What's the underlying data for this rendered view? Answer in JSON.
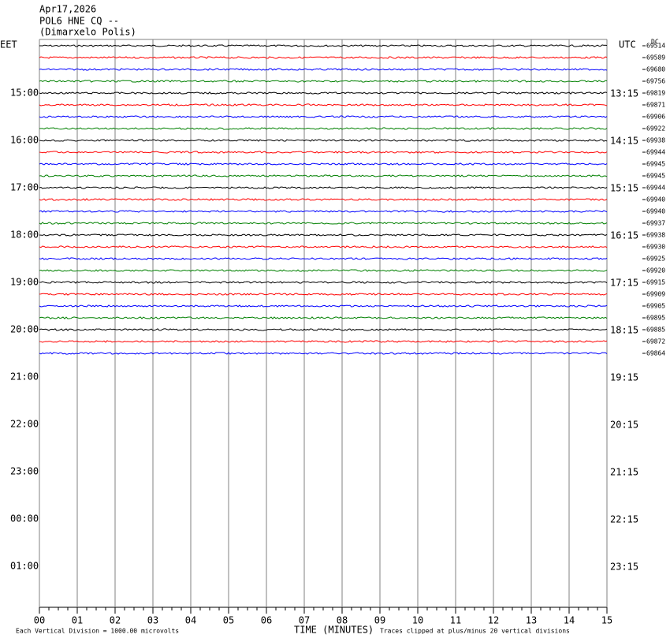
{
  "header": {
    "date": "Apr17,2026",
    "station": "POL6 HNE CQ --",
    "location": "(Dimarxelo Polis)"
  },
  "left_zone": "EET",
  "right_zone": "UTC",
  "dc_label": "DC",
  "left_labels": [
    "15:00",
    "16:00",
    "17:00",
    "18:00",
    "19:00",
    "20:00",
    "21:00",
    "22:00",
    "23:00",
    "00:00",
    "01:00"
  ],
  "right_labels": [
    "13:15",
    "14:15",
    "15:15",
    "16:15",
    "17:15",
    "18:15",
    "19:15",
    "20:15",
    "21:15",
    "22:15",
    "23:15"
  ],
  "trace_colors": [
    "#000000",
    "#ff0000",
    "#0000ff",
    "#008000"
  ],
  "dc_values": [
    69514,
    69589,
    69680,
    69756,
    69819,
    69871,
    69906,
    69922,
    69938,
    69944,
    69945,
    69945,
    69944,
    69940,
    69940,
    69937,
    69938,
    69930,
    69925,
    69920,
    69915,
    69909,
    69905,
    69895,
    69885,
    69872,
    69864
  ],
  "x_labels": [
    "00",
    "01",
    "02",
    "03",
    "04",
    "05",
    "06",
    "07",
    "08",
    "09",
    "10",
    "11",
    "12",
    "13",
    "14",
    "15"
  ],
  "footer": {
    "scale": "Each Vertical Division = 1000.00 microvolts",
    "axis_title": "TIME (MINUTES)",
    "clip_note": "Traces clipped at plus/minus 20 vertical divisions"
  }
}
